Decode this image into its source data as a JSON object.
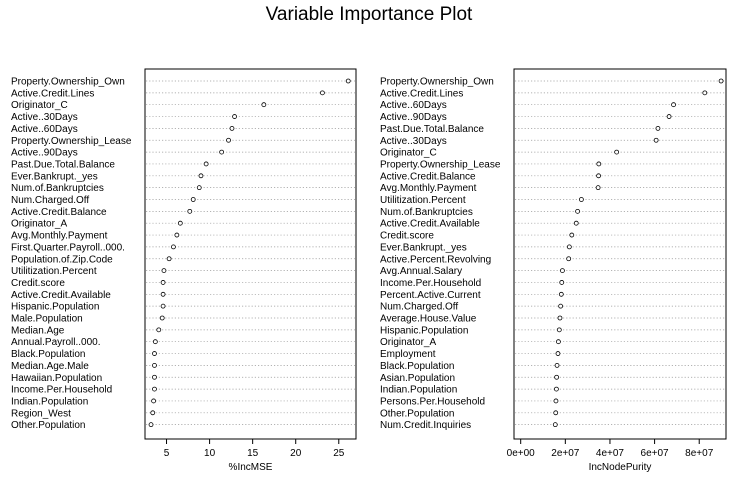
{
  "title": "Variable Importance Plot",
  "chart_data": [
    {
      "type": "scatter",
      "xlabel": "%IncMSE",
      "ylabel": "",
      "xlim": [
        2.5,
        27
      ],
      "xticks": [
        "5",
        "10",
        "15",
        "20",
        "25"
      ],
      "xtick_values": [
        5,
        10,
        15,
        20,
        25
      ],
      "grid": "dotted horizontal",
      "points": [
        {
          "label": "Property.Ownership_Own",
          "value": 26.1
        },
        {
          "label": "Active.Credit.Lines",
          "value": 23.1
        },
        {
          "label": "Originator_C",
          "value": 16.3
        },
        {
          "label": "Active..30Days",
          "value": 12.9
        },
        {
          "label": "Active..60Days",
          "value": 12.6
        },
        {
          "label": "Property.Ownership_Lease",
          "value": 12.2
        },
        {
          "label": "Active..90Days",
          "value": 11.4
        },
        {
          "label": "Past.Due.Total.Balance",
          "value": 9.6
        },
        {
          "label": "Ever.Bankrupt._yes",
          "value": 9.0
        },
        {
          "label": "Num.of.Bankruptcies",
          "value": 8.8
        },
        {
          "label": "Num.Charged.Off",
          "value": 8.1
        },
        {
          "label": "Active.Credit.Balance",
          "value": 7.7
        },
        {
          "label": "Originator_A",
          "value": 6.6
        },
        {
          "label": "Avg.Monthly.Payment",
          "value": 6.2
        },
        {
          "label": "First.Quarter.Payroll..000.",
          "value": 5.8
        },
        {
          "label": "Population.of.Zip.Code",
          "value": 5.3
        },
        {
          "label": "Utilitization.Percent",
          "value": 4.7
        },
        {
          "label": "Credit.score",
          "value": 4.6
        },
        {
          "label": "Active.Credit.Available",
          "value": 4.6
        },
        {
          "label": "Hispanic.Population",
          "value": 4.6
        },
        {
          "label": "Male.Population",
          "value": 4.5
        },
        {
          "label": "Median.Age",
          "value": 4.1
        },
        {
          "label": "Annual.Payroll..000.",
          "value": 3.7
        },
        {
          "label": "Black.Population",
          "value": 3.6
        },
        {
          "label": "Median.Age.Male",
          "value": 3.6
        },
        {
          "label": "Hawaiian.Population",
          "value": 3.6
        },
        {
          "label": "Income.Per.Household",
          "value": 3.6
        },
        {
          "label": "Indian.Population",
          "value": 3.5
        },
        {
          "label": "Region_West",
          "value": 3.4
        },
        {
          "label": "Other.Population",
          "value": 3.2
        }
      ]
    },
    {
      "type": "scatter",
      "xlabel": "IncNodePurity",
      "ylabel": "",
      "xlim": [
        -3000000,
        92000000
      ],
      "xticks": [
        "0e+00",
        "2e+07",
        "4e+07",
        "6e+07",
        "8e+07"
      ],
      "xtick_values": [
        0,
        20000000,
        40000000,
        60000000,
        80000000
      ],
      "grid": "dotted horizontal",
      "points": [
        {
          "label": "Property.Ownership_Own",
          "value": 89800000
        },
        {
          "label": "Active.Credit.Lines",
          "value": 82500000
        },
        {
          "label": "Active..60Days",
          "value": 68500000
        },
        {
          "label": "Active..90Days",
          "value": 66500000
        },
        {
          "label": "Past.Due.Total.Balance",
          "value": 61500000
        },
        {
          "label": "Active..30Days",
          "value": 60700000
        },
        {
          "label": "Originator_C",
          "value": 43000000
        },
        {
          "label": "Property.Ownership_Lease",
          "value": 35000000
        },
        {
          "label": "Active.Credit.Balance",
          "value": 34900000
        },
        {
          "label": "Avg.Monthly.Payment",
          "value": 34700000
        },
        {
          "label": "Utilitization.Percent",
          "value": 27200000
        },
        {
          "label": "Num.of.Bankruptcies",
          "value": 25500000
        },
        {
          "label": "Active.Credit.Available",
          "value": 24900000
        },
        {
          "label": "Credit.score",
          "value": 22900000
        },
        {
          "label": "Ever.Bankrupt._yes",
          "value": 21800000
        },
        {
          "label": "Active.Percent.Revolving",
          "value": 21500000
        },
        {
          "label": "Avg.Annual.Salary",
          "value": 18700000
        },
        {
          "label": "Income.Per.Household",
          "value": 18400000
        },
        {
          "label": "Percent.Active.Current",
          "value": 18200000
        },
        {
          "label": "Num.Charged.Off",
          "value": 17900000
        },
        {
          "label": "Average.House.Value",
          "value": 17600000
        },
        {
          "label": "Hispanic.Population",
          "value": 17300000
        },
        {
          "label": "Originator_A",
          "value": 16900000
        },
        {
          "label": "Employment",
          "value": 16700000
        },
        {
          "label": "Black.Population",
          "value": 16300000
        },
        {
          "label": "Asian.Population",
          "value": 16100000
        },
        {
          "label": "Indian.Population",
          "value": 16000000
        },
        {
          "label": "Persons.Per.Household",
          "value": 15800000
        },
        {
          "label": "Other.Population",
          "value": 15700000
        },
        {
          "label": "Num.Credit.Inquiries",
          "value": 15500000
        }
      ]
    }
  ]
}
